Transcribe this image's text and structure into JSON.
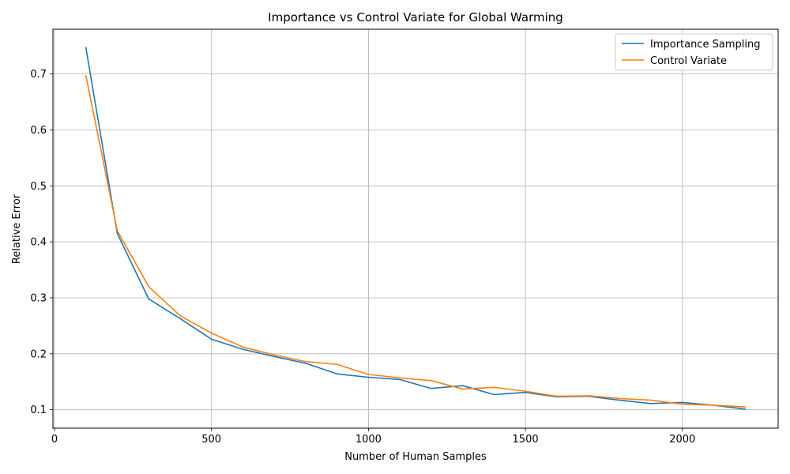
{
  "chart_data": {
    "type": "line",
    "title": "Importance vs Control Variate for Global Warming",
    "xlabel": "Number of Human Samples",
    "ylabel": "Relative Error",
    "xlim": [
      -5,
      2305
    ],
    "ylim": [
      0.067,
      0.78
    ],
    "grid": true,
    "legend_position": "top-right",
    "x_ticks": [
      0,
      500,
      1000,
      1500,
      2000
    ],
    "x_tick_labels": [
      "0",
      "500",
      "1000",
      "1500",
      "2000"
    ],
    "y_ticks": [
      0.1,
      0.2,
      0.3,
      0.4,
      0.5,
      0.6,
      0.7
    ],
    "y_tick_labels": [
      "0.1",
      "0.2",
      "0.3",
      "0.4",
      "0.5",
      "0.6",
      "0.7"
    ],
    "x": [
      100,
      200,
      300,
      400,
      500,
      600,
      700,
      800,
      900,
      1000,
      1100,
      1200,
      1300,
      1400,
      1500,
      1600,
      1700,
      1800,
      1900,
      2000,
      2100,
      2200
    ],
    "series": [
      {
        "name": "Importance Sampling",
        "color": "#1f77b4",
        "values": [
          0.747,
          0.415,
          0.298,
          0.263,
          0.226,
          0.208,
          0.195,
          0.183,
          0.164,
          0.158,
          0.154,
          0.138,
          0.143,
          0.127,
          0.131,
          0.123,
          0.124,
          0.117,
          0.111,
          0.113,
          0.108,
          0.101
        ]
      },
      {
        "name": "Control Variate",
        "color": "#ff7f0e",
        "values": [
          0.697,
          0.42,
          0.32,
          0.268,
          0.237,
          0.212,
          0.198,
          0.186,
          0.181,
          0.163,
          0.157,
          0.152,
          0.137,
          0.14,
          0.133,
          0.124,
          0.125,
          0.12,
          0.117,
          0.11,
          0.108,
          0.105
        ]
      }
    ]
  }
}
